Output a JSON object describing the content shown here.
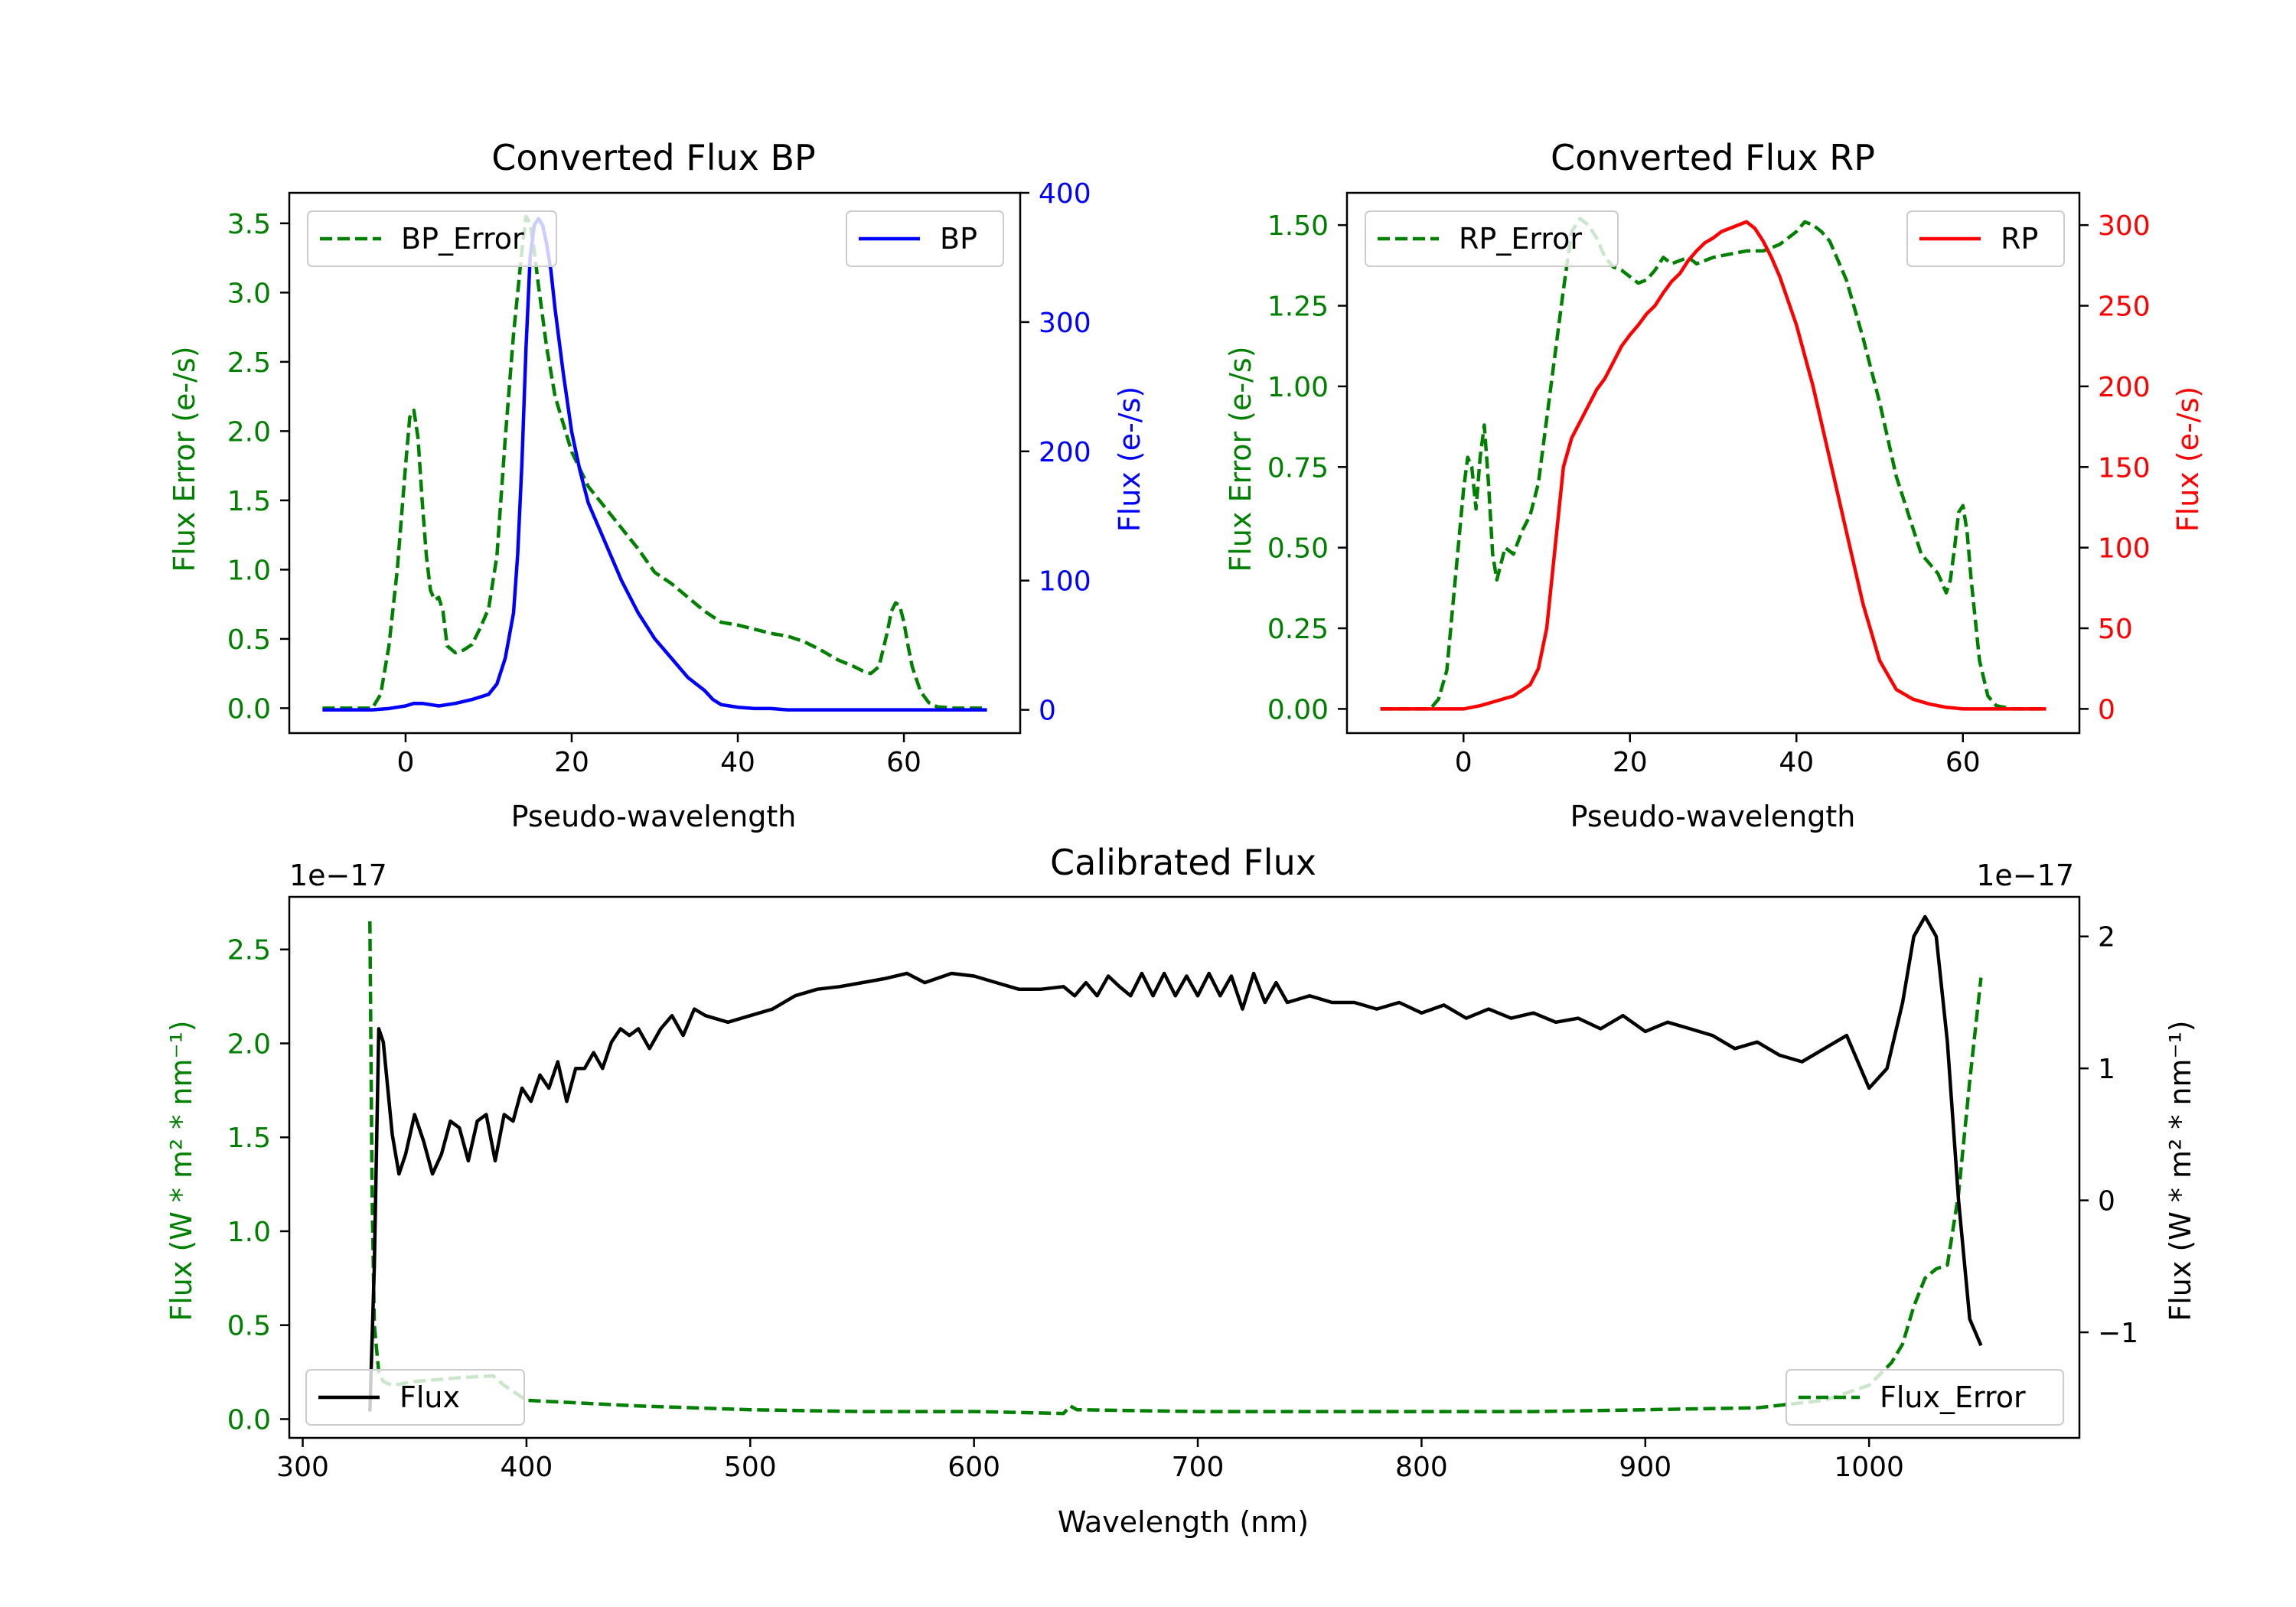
{
  "colors": {
    "bp": "#0000ff",
    "rp": "#ff0000",
    "error": "#008000",
    "flux": "#000000",
    "axis": "#000000",
    "legend_edge": "#cccccc"
  },
  "chart_data": [
    {
      "id": "bp",
      "type": "line",
      "title": "Converted Flux BP",
      "xlabel": "Pseudo-wavelength",
      "xlim": [
        -14,
        74
      ],
      "x_ticks": [
        0,
        20,
        40,
        60
      ],
      "y_left": {
        "label": "Flux Error (e-/s)",
        "lim": [
          -0.18,
          3.72
        ],
        "ticks": [
          0.0,
          0.5,
          1.0,
          1.5,
          2.0,
          2.5,
          3.0,
          3.5
        ],
        "tick_labels": [
          "0.0",
          "0.5",
          "1.0",
          "1.5",
          "2.0",
          "2.5",
          "3.0",
          "3.5"
        ]
      },
      "y_right": {
        "label": "Flux (e-/s)",
        "lim": [
          -18,
          400
        ],
        "ticks": [
          0,
          100,
          200,
          300,
          400
        ],
        "tick_labels": [
          "0",
          "100",
          "200",
          "300",
          "400"
        ]
      },
      "legend_left": "BP_Error",
      "legend_right": "BP",
      "series": [
        {
          "name": "BP_Error",
          "axis": "left",
          "style": "dashed",
          "color_key": "error",
          "x": [
            -10,
            -4,
            -3,
            -2,
            -1,
            0,
            0.5,
            1,
            1.5,
            2,
            2.5,
            3,
            3.5,
            4,
            4.5,
            5,
            6,
            7,
            8,
            9,
            10,
            11,
            12,
            13,
            14,
            14.5,
            15,
            15.5,
            16,
            17,
            18,
            20,
            22,
            24,
            26,
            28,
            30,
            32,
            34,
            36,
            38,
            40,
            42,
            44,
            46,
            48,
            50,
            52,
            54,
            55,
            56,
            57,
            58,
            58.5,
            59,
            59.5,
            60,
            60.5,
            61,
            62,
            63,
            64,
            66,
            70
          ],
          "values": [
            0,
            0,
            0.1,
            0.45,
            1.0,
            1.75,
            2.1,
            2.15,
            1.95,
            1.5,
            1.1,
            0.85,
            0.78,
            0.8,
            0.7,
            0.45,
            0.4,
            0.42,
            0.46,
            0.58,
            0.72,
            1.1,
            1.95,
            2.7,
            3.3,
            3.55,
            3.5,
            3.3,
            3.05,
            2.6,
            2.25,
            1.85,
            1.6,
            1.45,
            1.3,
            1.15,
            0.98,
            0.9,
            0.8,
            0.7,
            0.62,
            0.6,
            0.57,
            0.54,
            0.52,
            0.48,
            0.42,
            0.35,
            0.3,
            0.27,
            0.25,
            0.3,
            0.55,
            0.7,
            0.76,
            0.74,
            0.62,
            0.45,
            0.3,
            0.12,
            0.04,
            0.01,
            0,
            0
          ]
        },
        {
          "name": "BP",
          "axis": "right",
          "style": "solid",
          "color_key": "bp",
          "x": [
            -10,
            -4,
            -2,
            -1,
            0,
            1,
            2,
            3,
            4,
            6,
            8,
            10,
            11,
            12,
            13,
            13.5,
            14,
            14.5,
            15,
            15.5,
            16,
            16.5,
            17,
            17.5,
            18,
            19,
            20,
            21,
            22,
            24,
            26,
            28,
            30,
            32,
            34,
            36,
            37,
            38,
            39,
            40,
            42,
            44,
            46,
            48,
            50,
            55,
            60,
            65,
            70
          ],
          "values": [
            0,
            0,
            1,
            2,
            3,
            5,
            5,
            4,
            3,
            5,
            8,
            12,
            20,
            40,
            75,
            120,
            190,
            280,
            350,
            375,
            380,
            375,
            360,
            340,
            310,
            260,
            215,
            185,
            160,
            130,
            100,
            75,
            55,
            40,
            25,
            15,
            8,
            4,
            3,
            2,
            1,
            1,
            0,
            0,
            0,
            0,
            0,
            0,
            0
          ]
        }
      ]
    },
    {
      "id": "rp",
      "type": "line",
      "title": "Converted Flux RP",
      "xlabel": "Pseudo-wavelength",
      "xlim": [
        -14,
        74
      ],
      "x_ticks": [
        0,
        20,
        40,
        60
      ],
      "y_left": {
        "label": "Flux Error (e-/s)",
        "lim": [
          -0.075,
          1.6
        ],
        "ticks": [
          0.0,
          0.25,
          0.5,
          0.75,
          1.0,
          1.25,
          1.5
        ],
        "tick_labels": [
          "0.00",
          "0.25",
          "0.50",
          "0.75",
          "1.00",
          "1.25",
          "1.50"
        ]
      },
      "y_right": {
        "label": "Flux (e-/s)",
        "lim": [
          -15,
          320
        ],
        "ticks": [
          0,
          50,
          100,
          150,
          200,
          250,
          300
        ],
        "tick_labels": [
          "0",
          "50",
          "100",
          "150",
          "200",
          "250",
          "300"
        ]
      },
      "legend_left": "RP_Error",
      "legend_right": "RP",
      "series": [
        {
          "name": "RP_Error",
          "axis": "right_hidden",
          "style": "dashed",
          "color_key": "error",
          "x": [
            -10,
            -4,
            -3,
            -2,
            -1,
            0,
            0.5,
            1,
            1.5,
            2,
            2.5,
            3,
            3.5,
            4,
            5,
            6,
            7,
            8,
            9,
            10,
            11,
            12,
            13,
            14,
            15,
            16,
            17,
            18,
            19,
            20,
            21,
            22,
            23,
            24,
            25,
            26,
            27,
            28,
            30,
            32,
            34,
            36,
            38,
            40,
            41,
            42,
            43,
            44,
            46,
            48,
            50,
            52,
            54,
            55,
            56,
            57,
            58,
            58.5,
            59,
            59.5,
            60,
            60.5,
            61,
            62,
            63,
            64,
            66,
            70
          ],
          "values": [
            0,
            0,
            0.03,
            0.12,
            0.4,
            0.68,
            0.78,
            0.75,
            0.62,
            0.78,
            0.88,
            0.7,
            0.48,
            0.4,
            0.5,
            0.48,
            0.55,
            0.6,
            0.7,
            0.9,
            1.1,
            1.3,
            1.48,
            1.52,
            1.5,
            1.46,
            1.4,
            1.37,
            1.36,
            1.34,
            1.32,
            1.33,
            1.36,
            1.4,
            1.38,
            1.39,
            1.4,
            1.38,
            1.4,
            1.41,
            1.42,
            1.42,
            1.44,
            1.48,
            1.51,
            1.5,
            1.48,
            1.45,
            1.33,
            1.15,
            0.95,
            0.72,
            0.56,
            0.48,
            0.45,
            0.42,
            0.36,
            0.4,
            0.5,
            0.61,
            0.63,
            0.55,
            0.4,
            0.15,
            0.04,
            0.01,
            0,
            0
          ]
        },
        {
          "name": "RP",
          "axis": "right",
          "style": "solid",
          "color_key": "rp",
          "x": [
            -10,
            -2,
            0,
            2,
            4,
            6,
            8,
            9,
            10,
            11,
            12,
            13,
            14,
            15,
            16,
            17,
            18,
            19,
            20,
            21,
            22,
            23,
            24,
            25,
            26,
            27,
            28,
            29,
            30,
            31,
            32,
            33,
            34,
            35,
            36,
            37,
            38,
            39,
            40,
            42,
            44,
            46,
            48,
            50,
            52,
            54,
            56,
            58,
            60,
            63,
            66,
            70
          ],
          "values": [
            0,
            0,
            0,
            2,
            5,
            8,
            15,
            25,
            50,
            100,
            150,
            168,
            178,
            188,
            198,
            205,
            215,
            225,
            232,
            238,
            245,
            250,
            258,
            265,
            270,
            278,
            284,
            289,
            292,
            296,
            298,
            300,
            302,
            298,
            290,
            280,
            268,
            253,
            238,
            200,
            155,
            110,
            65,
            30,
            12,
            6,
            3,
            1,
            0,
            0,
            0,
            0
          ]
        }
      ]
    },
    {
      "id": "calibrated",
      "type": "line",
      "title": "Calibrated Flux",
      "xlabel": "Wavelength (nm)",
      "xlim": [
        294,
        1094
      ],
      "x_ticks": [
        300,
        400,
        500,
        600,
        700,
        800,
        900,
        1000
      ],
      "y_left": {
        "label": "Flux (W * m² * nm⁻¹)",
        "offset": "1e−17",
        "lim": [
          -0.1,
          2.78
        ],
        "ticks": [
          0.0,
          0.5,
          1.0,
          1.5,
          2.0,
          2.5
        ],
        "tick_labels": [
          "0.0",
          "0.5",
          "1.0",
          "1.5",
          "2.0",
          "2.5"
        ]
      },
      "y_right": {
        "label": "Flux (W * m² * nm⁻¹)",
        "offset": "1e−17",
        "lim": [
          -1.8,
          2.3
        ],
        "ticks": [
          -1,
          0,
          1,
          2
        ],
        "tick_labels": [
          "−1",
          "0",
          "1",
          "2"
        ]
      },
      "legend_left": "Flux",
      "legend_right": "Flux_Error",
      "series": [
        {
          "name": "Flux_Error",
          "axis": "left",
          "style": "dashed",
          "color_key": "error",
          "x": [
            330,
            331,
            332,
            334,
            336,
            340,
            350,
            370,
            385,
            390,
            400,
            450,
            500,
            550,
            600,
            640,
            643,
            646,
            700,
            750,
            800,
            850,
            900,
            950,
            980,
            1000,
            1010,
            1015,
            1020,
            1025,
            1030,
            1035,
            1040,
            1045,
            1050
          ],
          "values": [
            2.65,
            1.2,
            0.5,
            0.25,
            0.2,
            0.18,
            0.2,
            0.22,
            0.23,
            0.18,
            0.1,
            0.07,
            0.05,
            0.04,
            0.04,
            0.03,
            0.07,
            0.05,
            0.04,
            0.04,
            0.04,
            0.04,
            0.05,
            0.06,
            0.1,
            0.18,
            0.3,
            0.4,
            0.6,
            0.75,
            0.8,
            0.82,
            1.2,
            1.8,
            2.35
          ]
        },
        {
          "name": "Flux",
          "axis": "right",
          "style": "solid",
          "color_key": "flux",
          "x": [
            330,
            332,
            334,
            336,
            340,
            343,
            346,
            350,
            354,
            358,
            362,
            366,
            370,
            374,
            378,
            382,
            386,
            390,
            394,
            398,
            402,
            406,
            410,
            414,
            418,
            422,
            426,
            430,
            434,
            438,
            442,
            446,
            450,
            455,
            460,
            465,
            470,
            475,
            480,
            490,
            500,
            510,
            520,
            530,
            540,
            550,
            560,
            570,
            578,
            590,
            600,
            610,
            620,
            630,
            640,
            645,
            650,
            655,
            660,
            665,
            670,
            675,
            680,
            685,
            690,
            695,
            700,
            705,
            710,
            715,
            720,
            725,
            730,
            735,
            740,
            750,
            760,
            770,
            780,
            790,
            800,
            810,
            820,
            830,
            840,
            850,
            860,
            870,
            880,
            890,
            900,
            910,
            920,
            930,
            940,
            950,
            960,
            970,
            980,
            990,
            1000,
            1008,
            1015,
            1020,
            1025,
            1030,
            1035,
            1040,
            1045,
            1050
          ],
          "values": [
            -1.6,
            -0.5,
            1.3,
            1.2,
            0.5,
            0.2,
            0.35,
            0.65,
            0.45,
            0.2,
            0.35,
            0.6,
            0.55,
            0.3,
            0.6,
            0.65,
            0.3,
            0.65,
            0.6,
            0.85,
            0.75,
            0.95,
            0.85,
            1.05,
            0.75,
            1.0,
            1.0,
            1.12,
            1.0,
            1.2,
            1.3,
            1.25,
            1.3,
            1.15,
            1.3,
            1.4,
            1.25,
            1.45,
            1.4,
            1.35,
            1.4,
            1.45,
            1.55,
            1.6,
            1.62,
            1.65,
            1.68,
            1.72,
            1.65,
            1.72,
            1.7,
            1.65,
            1.6,
            1.6,
            1.62,
            1.55,
            1.65,
            1.55,
            1.7,
            1.62,
            1.55,
            1.72,
            1.55,
            1.72,
            1.55,
            1.7,
            1.55,
            1.72,
            1.55,
            1.7,
            1.45,
            1.72,
            1.5,
            1.65,
            1.5,
            1.55,
            1.5,
            1.5,
            1.45,
            1.5,
            1.42,
            1.48,
            1.38,
            1.45,
            1.38,
            1.42,
            1.35,
            1.38,
            1.3,
            1.4,
            1.28,
            1.35,
            1.3,
            1.25,
            1.15,
            1.2,
            1.1,
            1.05,
            1.15,
            1.25,
            0.85,
            1.0,
            1.5,
            2.0,
            2.15,
            2.0,
            1.2,
            0.0,
            -0.9,
            -1.1
          ]
        }
      ]
    }
  ]
}
